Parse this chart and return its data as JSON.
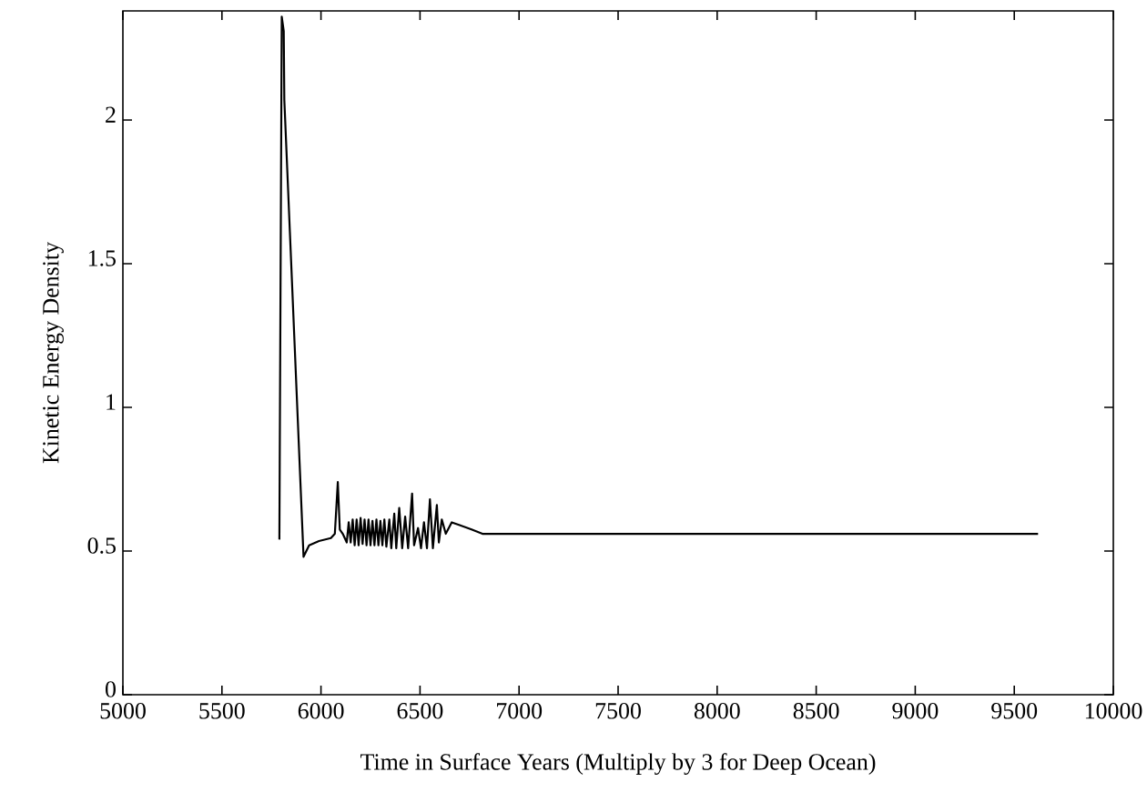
{
  "chart_data": {
    "type": "line",
    "xlabel": "Time in Surface Years (Multiply by 3 for Deep Ocean)",
    "ylabel": "Kinetic Energy Density",
    "xlim": [
      5000,
      10000
    ],
    "ylim": [
      0,
      2.38
    ],
    "xticks": [
      5000,
      5500,
      6000,
      6500,
      7000,
      7500,
      8000,
      8500,
      9000,
      9500,
      10000
    ],
    "yticks": [
      0,
      0.5,
      1,
      1.5,
      2
    ],
    "grid": false,
    "line_style": "solid",
    "series": [
      {
        "color": "#000000",
        "x": [
          5790,
          5802,
          5812,
          5815,
          5912,
          5940,
          5990,
          6050,
          6070,
          6085,
          6095,
          6110,
          6130,
          6140,
          6150,
          6160,
          6170,
          6180,
          6190,
          6200,
          6210,
          6220,
          6230,
          6240,
          6250,
          6260,
          6270,
          6280,
          6290,
          6300,
          6310,
          6320,
          6330,
          6345,
          6355,
          6370,
          6380,
          6395,
          6410,
          6425,
          6440,
          6460,
          6470,
          6490,
          6505,
          6520,
          6535,
          6550,
          6565,
          6585,
          6595,
          6610,
          6630,
          6660,
          6700,
          6760,
          6815,
          6900,
          9620
        ],
        "values": [
          0.54,
          2.36,
          2.31,
          2.07,
          0.48,
          0.52,
          0.535,
          0.545,
          0.56,
          0.74,
          0.575,
          0.56,
          0.53,
          0.6,
          0.53,
          0.61,
          0.52,
          0.61,
          0.52,
          0.615,
          0.525,
          0.61,
          0.52,
          0.61,
          0.52,
          0.605,
          0.52,
          0.61,
          0.52,
          0.605,
          0.52,
          0.61,
          0.515,
          0.61,
          0.51,
          0.63,
          0.51,
          0.65,
          0.51,
          0.62,
          0.51,
          0.7,
          0.52,
          0.58,
          0.51,
          0.6,
          0.51,
          0.68,
          0.51,
          0.66,
          0.53,
          0.61,
          0.56,
          0.6,
          0.59,
          0.575,
          0.56,
          0.56,
          0.56
        ]
      }
    ]
  }
}
